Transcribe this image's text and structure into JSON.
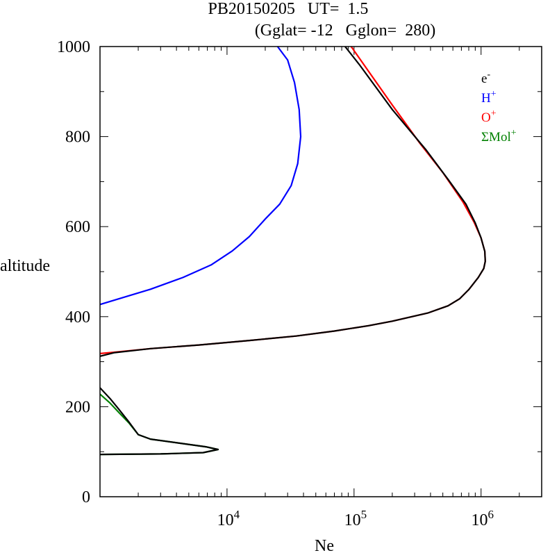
{
  "chart_data": {
    "type": "line",
    "title_line1": "PB20150205   UT=  1.5",
    "title_line2": "(Gglat= -12   Gglon=  280)",
    "xlabel": "Ne",
    "ylabel": "altitude",
    "x_scale": "log",
    "xlim": [
      1000,
      3000000
    ],
    "ylim": [
      0,
      1000
    ],
    "y_ticks": [
      "0",
      "200",
      "400",
      "600",
      "800",
      "1000"
    ],
    "x_ticks": [
      {
        "base": "10",
        "exp": "4",
        "value": 10000
      },
      {
        "base": "10",
        "exp": "5",
        "value": 100000
      },
      {
        "base": "10",
        "exp": "6",
        "value": 1000000
      }
    ],
    "legend_position": "top-right",
    "series": [
      {
        "name": "e",
        "sup": "-",
        "color": "#000000",
        "segments": [
          [
            [
              1000,
              94
            ],
            [
              3000,
              95
            ],
            [
              6500,
              98
            ],
            [
              8500,
              105
            ],
            [
              6800,
              111
            ],
            [
              2500,
              128
            ],
            [
              2000,
              138
            ],
            [
              1700,
              165
            ],
            [
              1400,
              195
            ],
            [
              1200,
              218
            ],
            [
              1000,
              242
            ]
          ],
          [
            [
              1000,
              312
            ],
            [
              1300,
              320
            ],
            [
              2500,
              329
            ],
            [
              6000,
              337
            ],
            [
              15000,
              347
            ],
            [
              35000,
              357
            ],
            [
              70000,
              368
            ],
            [
              130000,
              380
            ],
            [
              200000,
              390
            ],
            [
              380000,
              408
            ],
            [
              550000,
              424
            ],
            [
              680000,
              440
            ],
            [
              800000,
              460
            ],
            [
              950000,
              487
            ],
            [
              1050000,
              507
            ],
            [
              1080000,
              523
            ],
            [
              1070000,
              545
            ],
            [
              1000000,
              575
            ],
            [
              900000,
              608
            ],
            [
              760000,
              650
            ],
            [
              550000,
              705
            ],
            [
              370000,
              770
            ],
            [
              200000,
              860
            ],
            [
              110000,
              960
            ],
            [
              85000,
              1000
            ]
          ]
        ]
      },
      {
        "name": "H",
        "sup": "+",
        "color": "#0000ff",
        "segments": [
          [
            [
              1000,
              427
            ],
            [
              1500,
              442
            ],
            [
              2500,
              461
            ],
            [
              4500,
              487
            ],
            [
              7500,
              515
            ],
            [
              11000,
              546
            ],
            [
              15000,
              578
            ],
            [
              20000,
              617
            ],
            [
              26000,
              650
            ],
            [
              32000,
              691
            ],
            [
              36000,
              740
            ],
            [
              38000,
              800
            ],
            [
              37000,
              860
            ],
            [
              34000,
              920
            ],
            [
              30000,
              970
            ],
            [
              25000,
              1000
            ]
          ]
        ]
      },
      {
        "name": "O",
        "sup": "+",
        "color": "#ff0000",
        "segments": [
          [
            [
              1000,
              318
            ],
            [
              1300,
              321
            ],
            [
              2500,
              329
            ],
            [
              6000,
              337
            ],
            [
              15000,
              347
            ],
            [
              35000,
              357
            ],
            [
              70000,
              368
            ],
            [
              130000,
              380
            ],
            [
              200000,
              390
            ],
            [
              380000,
              408
            ],
            [
              550000,
              424
            ],
            [
              680000,
              440
            ],
            [
              800000,
              460
            ],
            [
              950000,
              487
            ],
            [
              1050000,
              507
            ],
            [
              1080000,
              523
            ],
            [
              1070000,
              545
            ],
            [
              1000000,
              575
            ],
            [
              880000,
              610
            ],
            [
              720000,
              655
            ],
            [
              500000,
              720
            ],
            [
              330000,
              785
            ],
            [
              200000,
              870
            ],
            [
              130000,
              945
            ],
            [
              95000,
              1000
            ]
          ]
        ]
      },
      {
        "name": "ΣMol",
        "sup": "+",
        "color": "#008000",
        "segments": [
          [
            [
              1000,
              94
            ],
            [
              3000,
              95
            ],
            [
              6500,
              98
            ],
            [
              8500,
              105
            ],
            [
              6800,
              111
            ],
            [
              2500,
              128
            ],
            [
              2000,
              138
            ],
            [
              1700,
              163
            ],
            [
              1400,
              188
            ],
            [
              1200,
              208
            ],
            [
              1000,
              228
            ]
          ]
        ]
      }
    ]
  }
}
